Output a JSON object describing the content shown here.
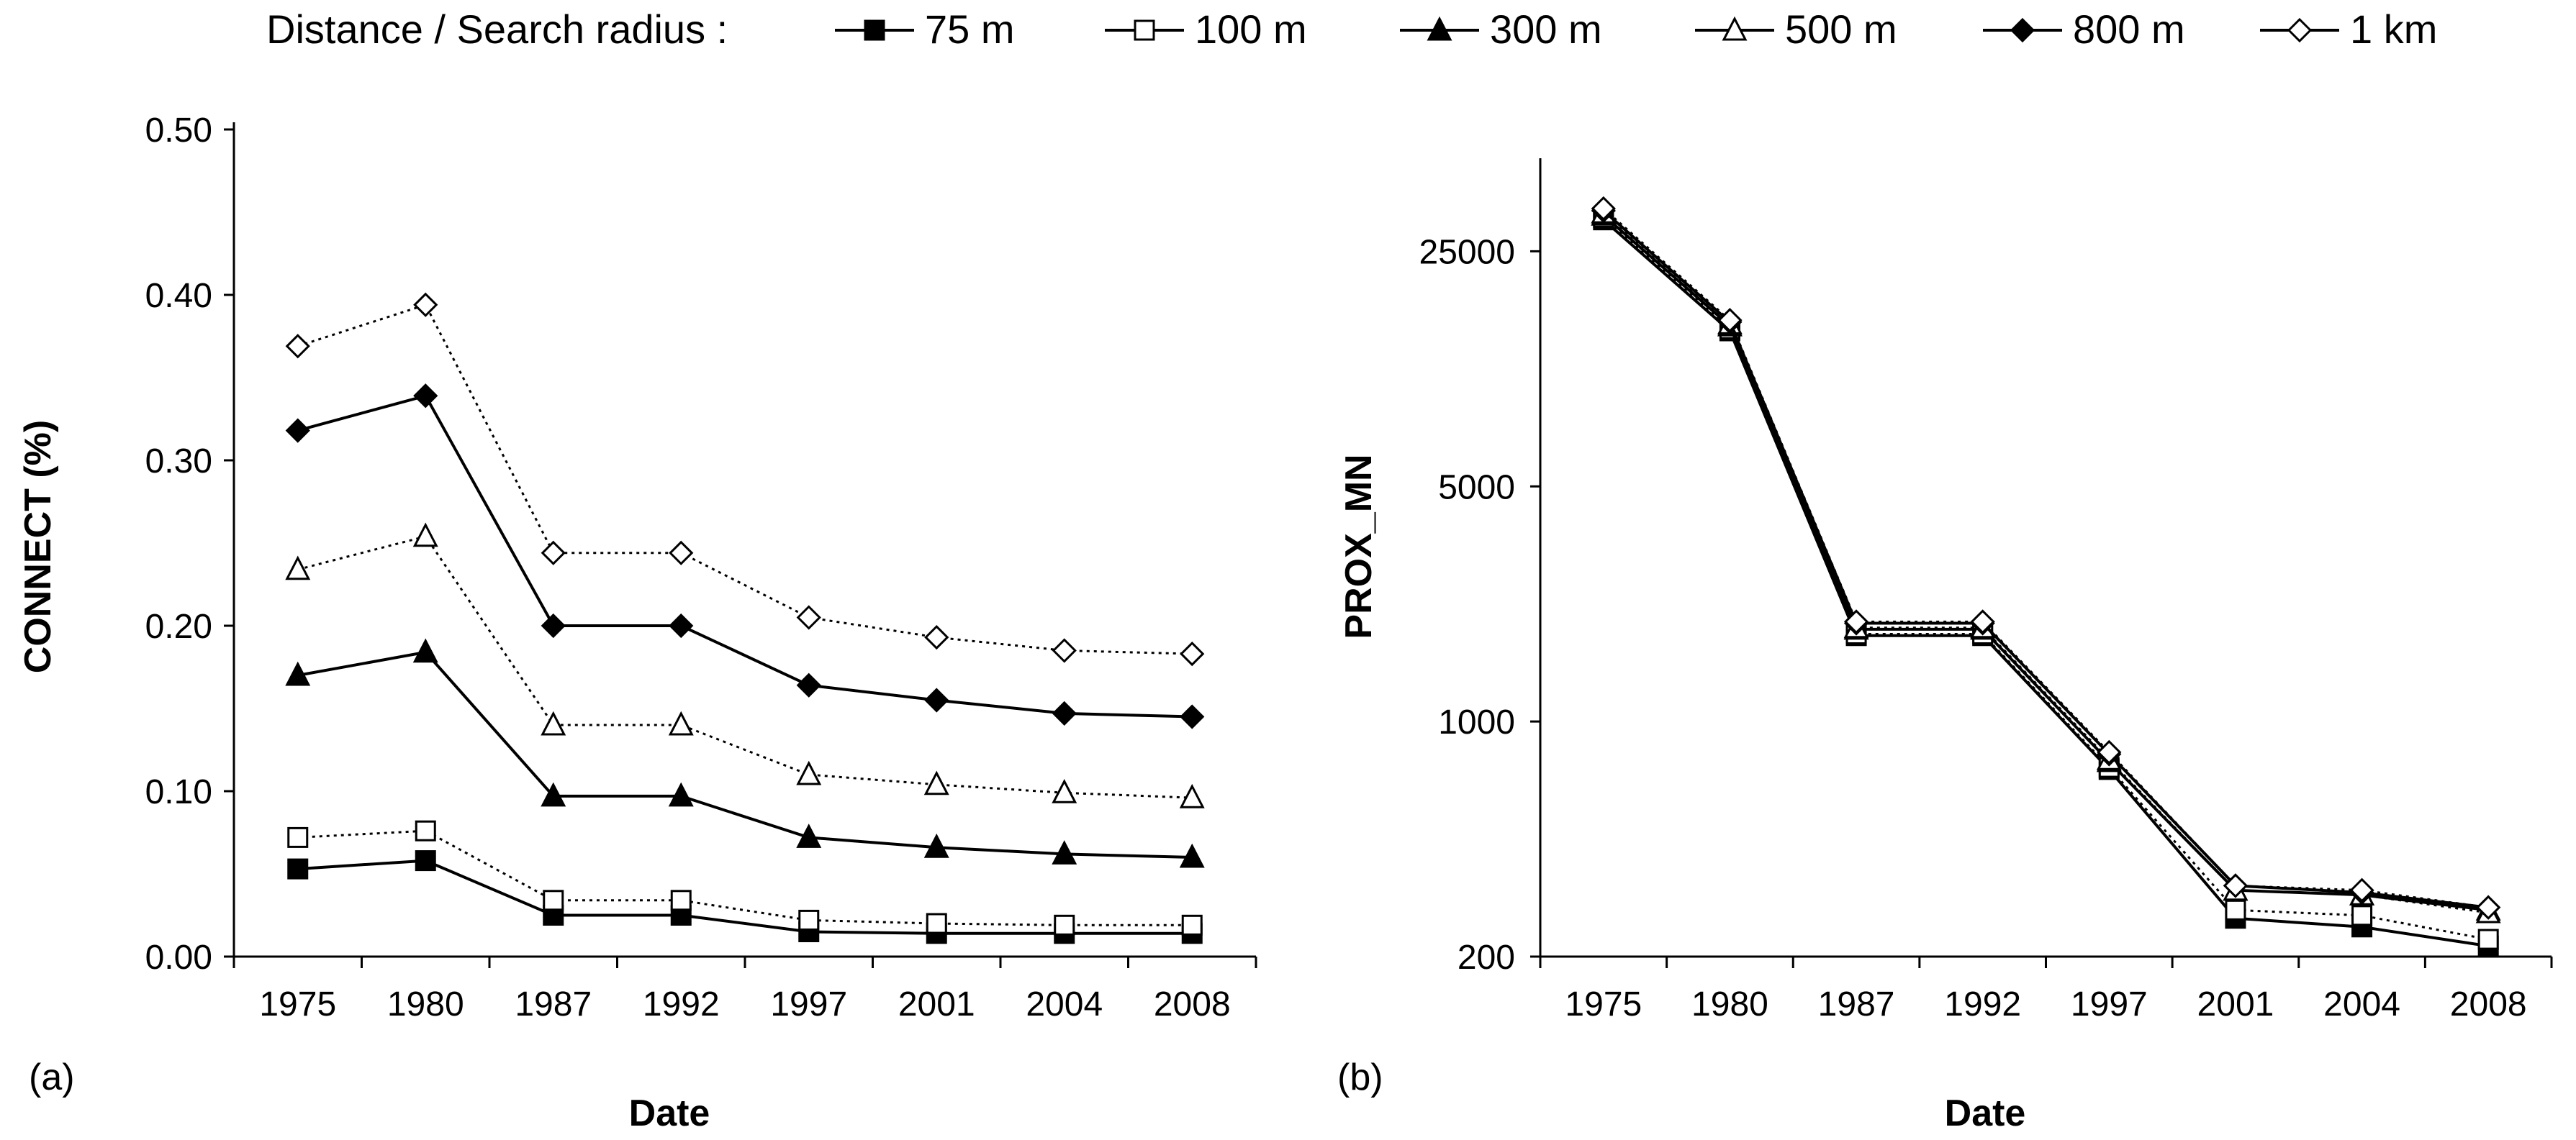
{
  "legend": {
    "title": "Distance / Search radius :"
  },
  "chart_data": [
    {
      "type": "line",
      "panel_label": "(a)",
      "xlabel": "Date",
      "ylabel": "CONNECT (%)",
      "categories": [
        "1975",
        "1980",
        "1987",
        "1992",
        "1997",
        "2001",
        "2004",
        "2008"
      ],
      "ylim": [
        0,
        0.5
      ],
      "yscale": "linear",
      "yticks": [
        0,
        0.1,
        0.2,
        0.3,
        0.4,
        0.5
      ],
      "ytick_labels": [
        "0.00",
        "0.10",
        "0.20",
        "0.30",
        "0.40",
        "0.50"
      ],
      "series": [
        {
          "name": "75 m",
          "marker": "square",
          "fill": "#000000",
          "dash": "solid",
          "values": [
            0.053,
            0.058,
            0.025,
            0.025,
            0.015,
            0.014,
            0.014,
            0.014
          ]
        },
        {
          "name": "100 m",
          "marker": "square",
          "fill": "#ffffff",
          "dash": "dotted",
          "values": [
            0.072,
            0.076,
            0.034,
            0.034,
            0.022,
            0.02,
            0.019,
            0.019
          ]
        },
        {
          "name": "300 m",
          "marker": "triangle",
          "fill": "#000000",
          "dash": "solid",
          "values": [
            0.17,
            0.184,
            0.097,
            0.097,
            0.072,
            0.066,
            0.062,
            0.06
          ]
        },
        {
          "name": "500 m",
          "marker": "triangle",
          "fill": "#ffffff",
          "dash": "dotted",
          "values": [
            0.234,
            0.254,
            0.14,
            0.14,
            0.11,
            0.104,
            0.099,
            0.096
          ]
        },
        {
          "name": "800 m",
          "marker": "diamond",
          "fill": "#000000",
          "dash": "solid",
          "values": [
            0.318,
            0.339,
            0.2,
            0.2,
            0.164,
            0.155,
            0.147,
            0.145
          ]
        },
        {
          "name": "1 km",
          "marker": "diamond",
          "fill": "#ffffff",
          "dash": "dotted",
          "values": [
            0.369,
            0.394,
            0.244,
            0.244,
            0.205,
            0.193,
            0.185,
            0.183
          ]
        }
      ]
    },
    {
      "type": "line",
      "panel_label": "(b)",
      "xlabel": "Date",
      "ylabel": "PROX_MN",
      "categories": [
        "1975",
        "1980",
        "1987",
        "1992",
        "1997",
        "2001",
        "2004",
        "2008"
      ],
      "ylim": [
        200,
        45000
      ],
      "yscale": "log",
      "yticks": [
        200,
        1000,
        5000,
        25000
      ],
      "ytick_labels": [
        "200",
        "1000",
        "5000",
        "25000"
      ],
      "series": [
        {
          "name": "75 m",
          "marker": "square",
          "fill": "#000000",
          "dash": "solid",
          "values": [
            31000,
            14500,
            1800,
            1800,
            720,
            260,
            245,
            215
          ]
        },
        {
          "name": "100 m",
          "marker": "square",
          "fill": "#ffffff",
          "dash": "dotted",
          "values": [
            31500,
            14700,
            1820,
            1820,
            730,
            275,
            265,
            225
          ]
        },
        {
          "name": "300 m",
          "marker": "triangle",
          "fill": "#000000",
          "dash": "solid",
          "values": [
            32000,
            15000,
            1880,
            1880,
            760,
            315,
            305,
            275
          ]
        },
        {
          "name": "500 m",
          "marker": "triangle",
          "fill": "#ffffff",
          "dash": "dotted",
          "values": [
            32500,
            15200,
            1900,
            1900,
            770,
            315,
            305,
            270
          ]
        },
        {
          "name": "800 m",
          "marker": "diamond",
          "fill": "#000000",
          "dash": "solid",
          "values": [
            33000,
            15400,
            1960,
            1960,
            800,
            325,
            310,
            280
          ]
        },
        {
          "name": "1 km",
          "marker": "diamond",
          "fill": "#ffffff",
          "dash": "dotted",
          "values": [
            33500,
            15600,
            1980,
            1980,
            810,
            325,
            315,
            280
          ]
        }
      ]
    }
  ]
}
